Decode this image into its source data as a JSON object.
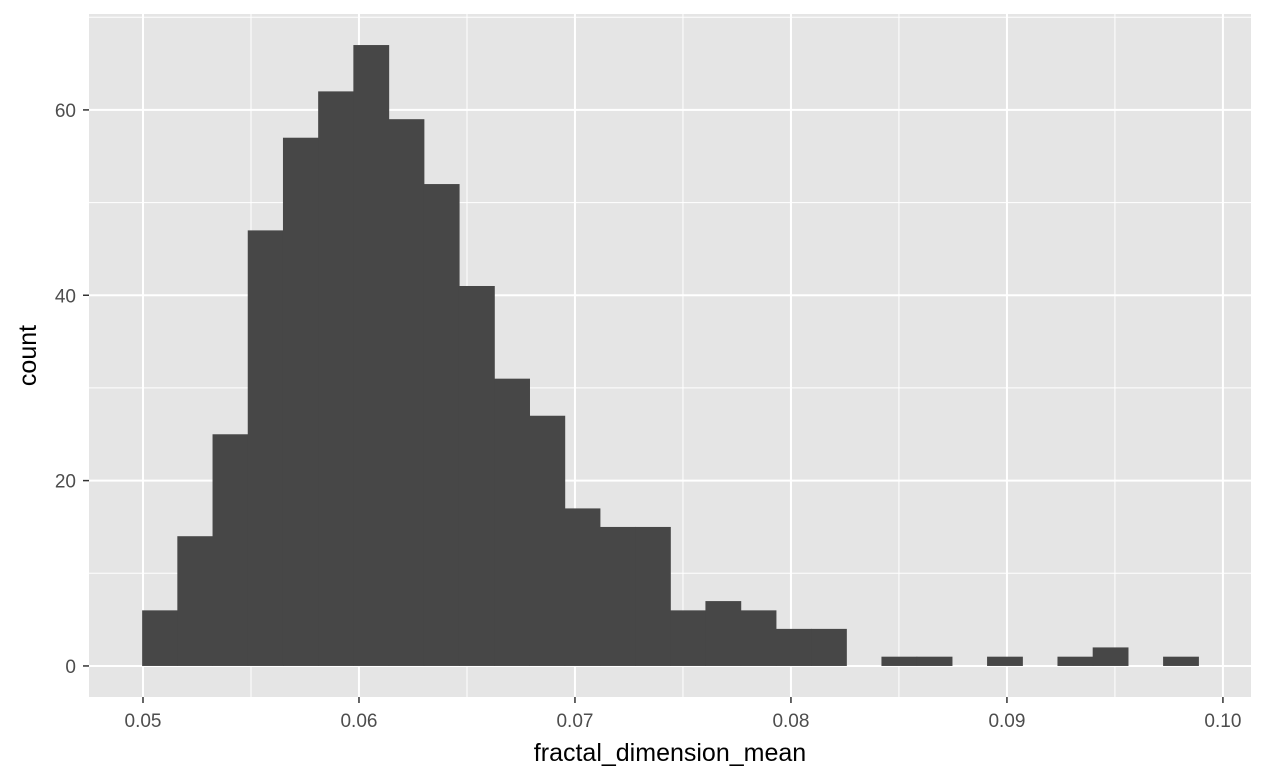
{
  "chart_data": {
    "type": "histogram",
    "title": "",
    "xlabel": "fractal_dimension_mean",
    "ylabel": "count",
    "xlim": [
      0.0475,
      0.1013
    ],
    "ylim": [
      -3.35,
      70.35
    ],
    "x_ticks": [
      0.05,
      0.06,
      0.07,
      0.08,
      0.09,
      0.1
    ],
    "x_tick_labels": [
      "0.05",
      "0.06",
      "0.07",
      "0.08",
      "0.09",
      "0.10"
    ],
    "y_ticks": [
      0,
      20,
      40,
      60
    ],
    "y_tick_labels": [
      "0",
      "20",
      "40",
      "60"
    ],
    "grid": true,
    "bin_width": 0.00163,
    "x_start": 0.04996,
    "counts": [
      6,
      14,
      25,
      47,
      57,
      62,
      67,
      59,
      52,
      41,
      31,
      27,
      17,
      15,
      15,
      6,
      7,
      6,
      4,
      4,
      0,
      1,
      1,
      0,
      1,
      0,
      1,
      2,
      0,
      1
    ],
    "colors": {
      "panel_background": "#e5e5e5",
      "grid_major": "#ffffff",
      "bar_fill": "#474747",
      "tick_label": "#4d4d4d",
      "axis_title": "#000000"
    }
  }
}
